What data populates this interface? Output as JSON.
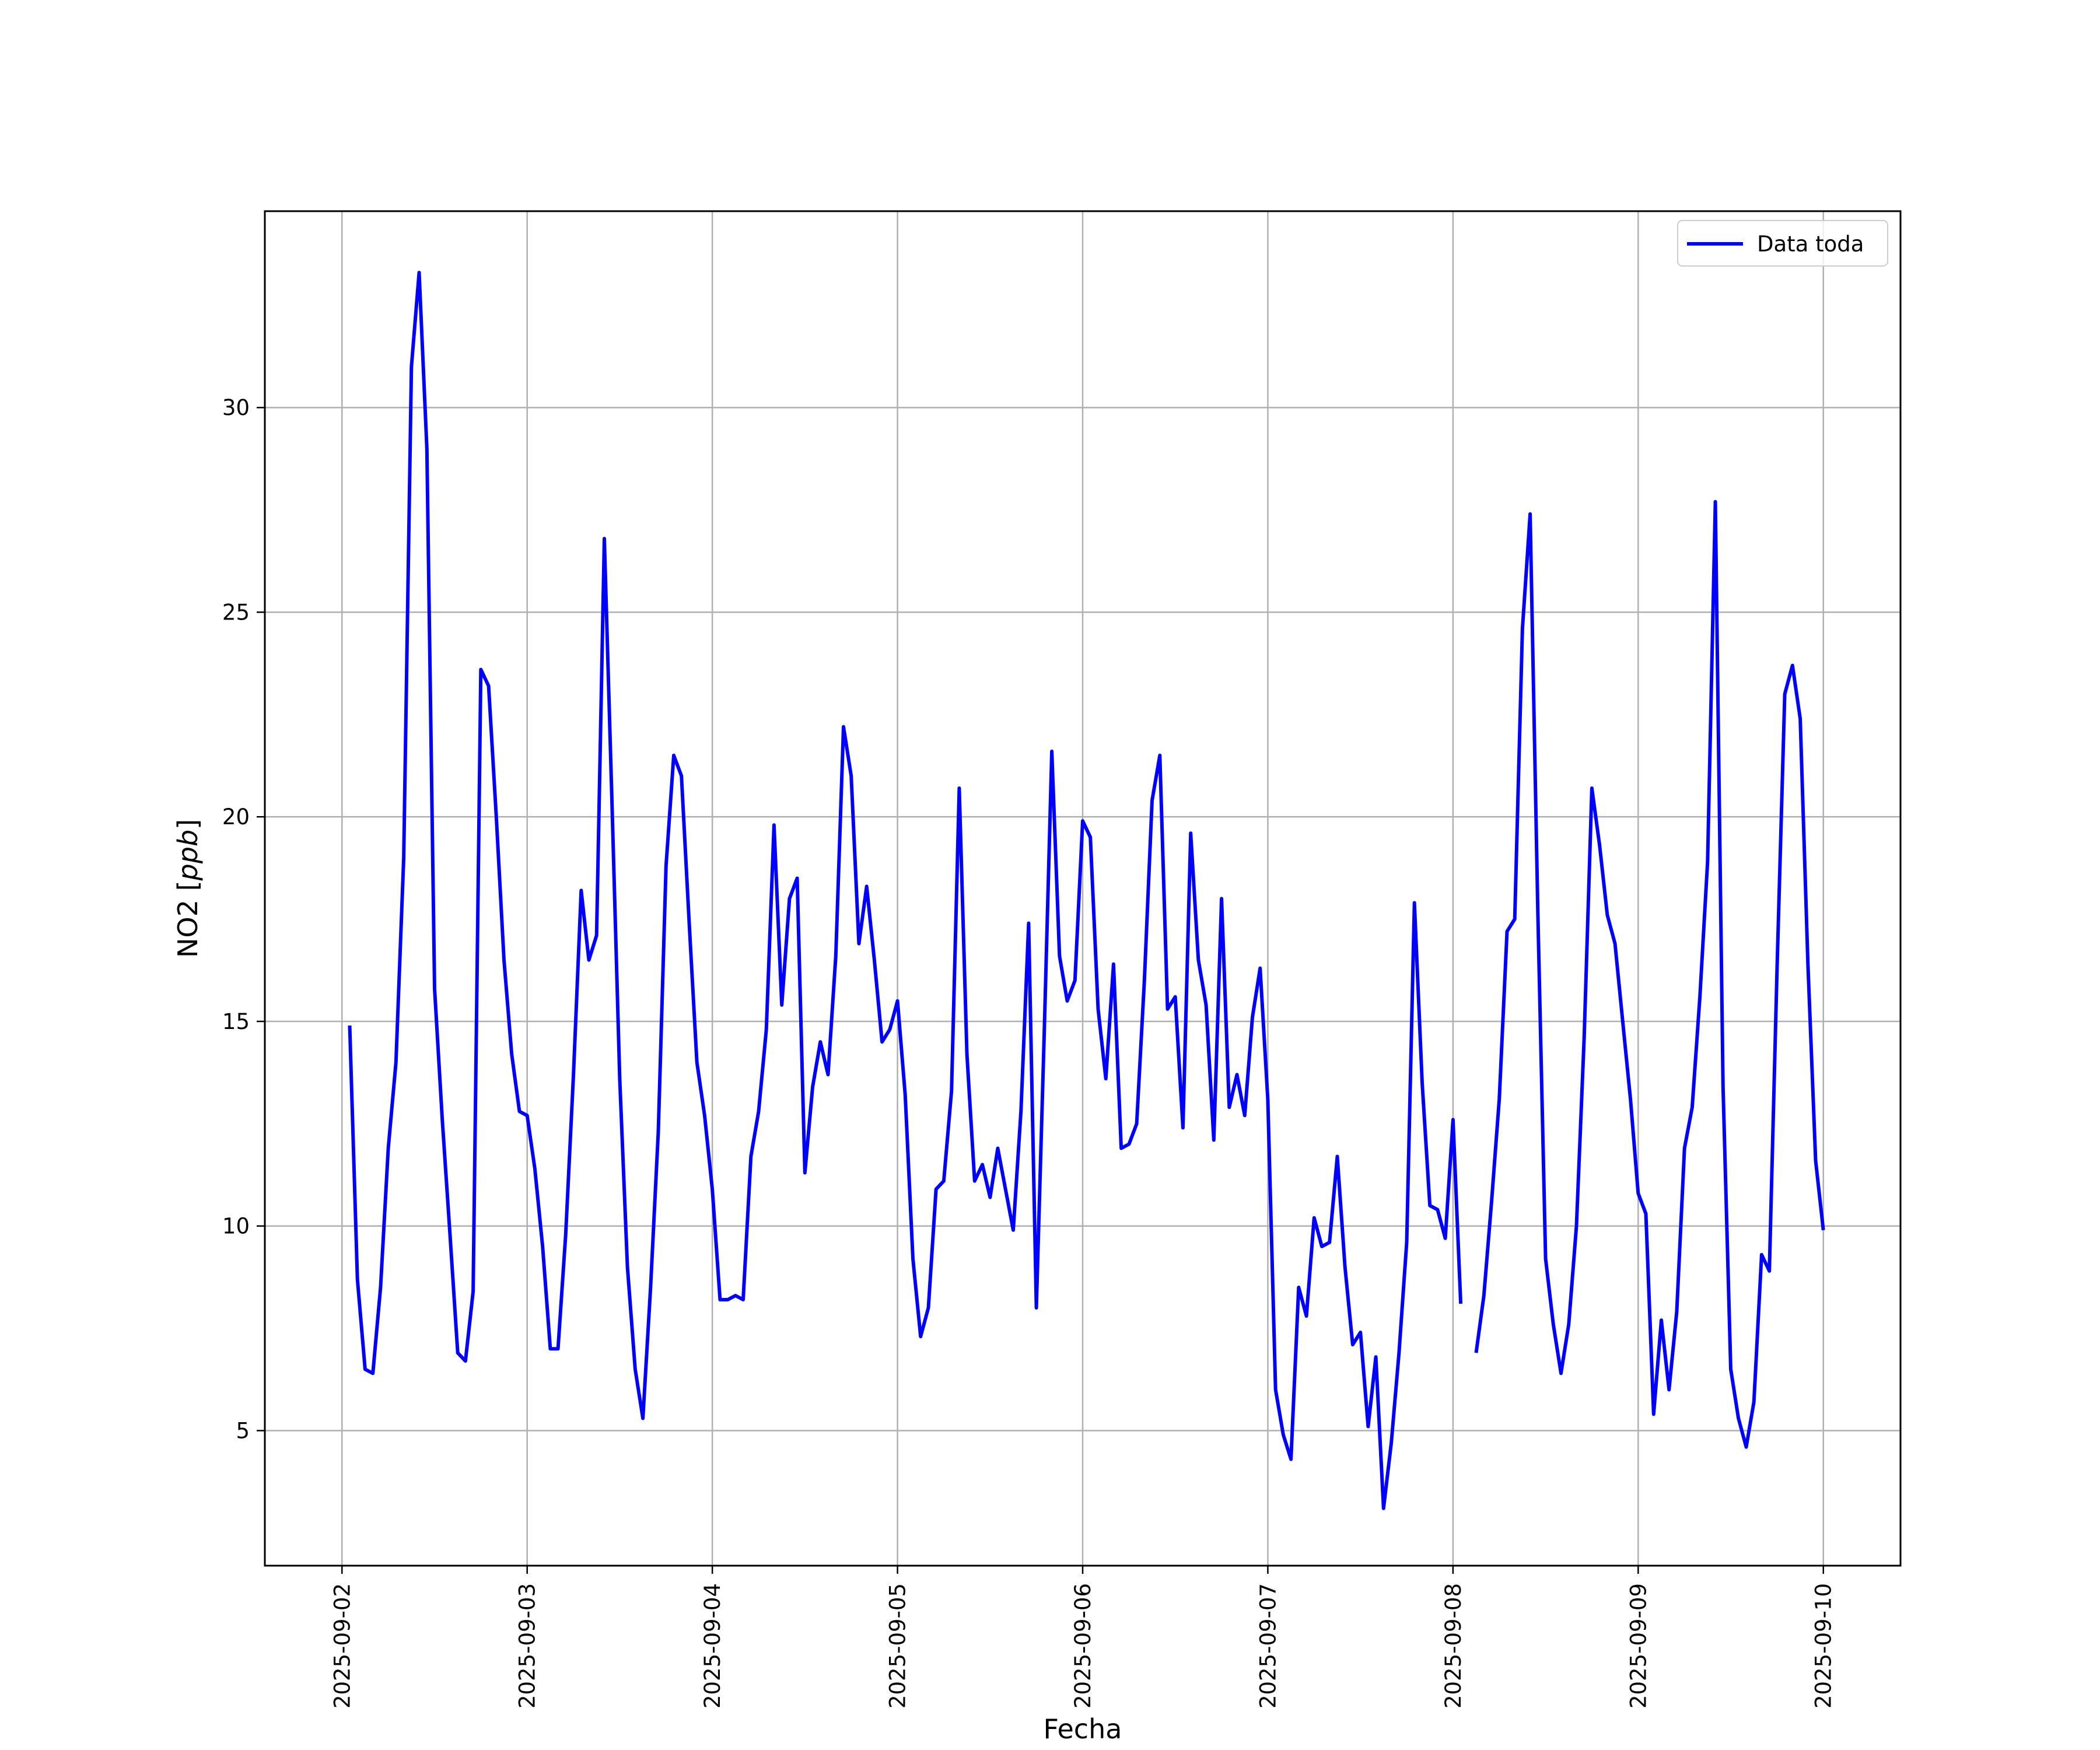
{
  "chart_data": {
    "type": "line",
    "title": "",
    "xlabel": "Fecha",
    "ylabel_prefix": "NO2 [",
    "ylabel_unit": "ppb",
    "ylabel_suffix": "]",
    "xlim": [
      "2025-09-01 14:00",
      "2025-09-10 10:00"
    ],
    "ylim": [
      1.7,
      34.8
    ],
    "grid": true,
    "legend_position": "top-right",
    "x_ticks": [
      "2025-09-02",
      "2025-09-03",
      "2025-09-04",
      "2025-09-05",
      "2025-09-06",
      "2025-09-07",
      "2025-09-08",
      "2025-09-09",
      "2025-09-10"
    ],
    "y_ticks": [
      5,
      10,
      15,
      20,
      25,
      30
    ],
    "series": [
      {
        "name": "Data toda",
        "color": "#0000ff",
        "segments": [
          [
            [
              "2025-09-02 01:00",
              14.9
            ],
            [
              "2025-09-02 02:00",
              8.7
            ],
            [
              "2025-09-02 03:00",
              6.5
            ],
            [
              "2025-09-02 04:00",
              6.4
            ],
            [
              "2025-09-02 05:00",
              8.5
            ],
            [
              "2025-09-02 06:00",
              11.9
            ],
            [
              "2025-09-02 07:00",
              14.0
            ],
            [
              "2025-09-02 08:00",
              19.0
            ],
            [
              "2025-09-02 09:00",
              31.0
            ],
            [
              "2025-09-02 10:00",
              33.3
            ],
            [
              "2025-09-02 11:00",
              29.0
            ],
            [
              "2025-09-02 12:00",
              15.8
            ],
            [
              "2025-09-02 13:00",
              12.6
            ],
            [
              "2025-09-02 14:00",
              9.8
            ],
            [
              "2025-09-02 15:00",
              6.9
            ],
            [
              "2025-09-02 16:00",
              6.7
            ],
            [
              "2025-09-02 17:00",
              8.4
            ],
            [
              "2025-09-02 18:00",
              23.6
            ],
            [
              "2025-09-02 19:00",
              23.2
            ],
            [
              "2025-09-02 20:00",
              20.0
            ],
            [
              "2025-09-02 21:00",
              16.5
            ],
            [
              "2025-09-02 22:00",
              14.2
            ],
            [
              "2025-09-02 23:00",
              12.8
            ],
            [
              "2025-09-03 00:00",
              12.7
            ],
            [
              "2025-09-03 01:00",
              11.4
            ],
            [
              "2025-09-03 02:00",
              9.5
            ],
            [
              "2025-09-03 03:00",
              7.0
            ],
            [
              "2025-09-03 04:00",
              7.0
            ],
            [
              "2025-09-03 05:00",
              9.8
            ],
            [
              "2025-09-03 06:00",
              13.7
            ],
            [
              "2025-09-03 07:00",
              18.2
            ],
            [
              "2025-09-03 08:00",
              16.5
            ],
            [
              "2025-09-03 09:00",
              17.1
            ],
            [
              "2025-09-03 10:00",
              26.8
            ],
            [
              "2025-09-03 11:00",
              20.3
            ],
            [
              "2025-09-03 12:00",
              13.6
            ],
            [
              "2025-09-03 13:00",
              9.0
            ],
            [
              "2025-09-03 14:00",
              6.5
            ],
            [
              "2025-09-03 15:00",
              5.3
            ],
            [
              "2025-09-03 16:00",
              8.5
            ],
            [
              "2025-09-03 17:00",
              12.3
            ],
            [
              "2025-09-03 18:00",
              18.8
            ],
            [
              "2025-09-03 19:00",
              21.5
            ],
            [
              "2025-09-03 20:00",
              21.0
            ],
            [
              "2025-09-03 21:00",
              17.4
            ],
            [
              "2025-09-03 22:00",
              14.0
            ],
            [
              "2025-09-03 23:00",
              12.7
            ],
            [
              "2025-09-04 00:00",
              10.9
            ],
            [
              "2025-09-04 01:00",
              8.2
            ],
            [
              "2025-09-04 02:00",
              8.2
            ],
            [
              "2025-09-04 03:00",
              8.3
            ],
            [
              "2025-09-04 04:00",
              8.2
            ],
            [
              "2025-09-04 05:00",
              11.7
            ],
            [
              "2025-09-04 06:00",
              12.8
            ],
            [
              "2025-09-04 07:00",
              14.8
            ],
            [
              "2025-09-04 08:00",
              19.8
            ],
            [
              "2025-09-04 09:00",
              15.4
            ],
            [
              "2025-09-04 10:00",
              18.0
            ],
            [
              "2025-09-04 11:00",
              18.5
            ],
            [
              "2025-09-04 12:00",
              11.3
            ],
            [
              "2025-09-04 13:00",
              13.4
            ],
            [
              "2025-09-04 14:00",
              14.5
            ],
            [
              "2025-09-04 15:00",
              13.7
            ],
            [
              "2025-09-04 16:00",
              16.6
            ],
            [
              "2025-09-04 17:00",
              22.2
            ],
            [
              "2025-09-04 18:00",
              21.0
            ],
            [
              "2025-09-04 19:00",
              16.9
            ],
            [
              "2025-09-04 20:00",
              18.3
            ],
            [
              "2025-09-04 21:00",
              16.5
            ],
            [
              "2025-09-04 22:00",
              14.5
            ],
            [
              "2025-09-04 23:00",
              14.8
            ],
            [
              "2025-09-05 00:00",
              15.5
            ],
            [
              "2025-09-05 01:00",
              13.2
            ],
            [
              "2025-09-05 02:00",
              9.2
            ],
            [
              "2025-09-05 03:00",
              7.3
            ],
            [
              "2025-09-05 04:00",
              8.0
            ],
            [
              "2025-09-05 05:00",
              10.9
            ],
            [
              "2025-09-05 06:00",
              11.1
            ],
            [
              "2025-09-05 07:00",
              13.3
            ],
            [
              "2025-09-05 08:00",
              20.7
            ],
            [
              "2025-09-05 09:00",
              14.2
            ],
            [
              "2025-09-05 10:00",
              11.1
            ],
            [
              "2025-09-05 11:00",
              11.5
            ],
            [
              "2025-09-05 12:00",
              10.7
            ],
            [
              "2025-09-05 13:00",
              11.9
            ],
            [
              "2025-09-05 14:00",
              10.9
            ],
            [
              "2025-09-05 15:00",
              9.9
            ],
            [
              "2025-09-05 16:00",
              12.8
            ],
            [
              "2025-09-05 17:00",
              17.4
            ],
            [
              "2025-09-05 18:00",
              8.0
            ],
            [
              "2025-09-05 19:00",
              14.6
            ],
            [
              "2025-09-05 20:00",
              21.6
            ],
            [
              "2025-09-05 21:00",
              16.6
            ],
            [
              "2025-09-05 22:00",
              15.5
            ],
            [
              "2025-09-05 23:00",
              16.0
            ],
            [
              "2025-09-06 00:00",
              19.9
            ],
            [
              "2025-09-06 01:00",
              19.5
            ],
            [
              "2025-09-06 02:00",
              15.3
            ],
            [
              "2025-09-06 03:00",
              13.6
            ],
            [
              "2025-09-06 04:00",
              16.4
            ],
            [
              "2025-09-06 05:00",
              11.9
            ],
            [
              "2025-09-06 06:00",
              12.0
            ],
            [
              "2025-09-06 07:00",
              12.5
            ],
            [
              "2025-09-06 08:00",
              16.0
            ],
            [
              "2025-09-06 09:00",
              20.4
            ],
            [
              "2025-09-06 10:00",
              21.5
            ],
            [
              "2025-09-06 11:00",
              15.3
            ],
            [
              "2025-09-06 12:00",
              15.6
            ],
            [
              "2025-09-06 13:00",
              12.4
            ],
            [
              "2025-09-06 14:00",
              19.6
            ],
            [
              "2025-09-06 15:00",
              16.5
            ],
            [
              "2025-09-06 16:00",
              15.4
            ],
            [
              "2025-09-06 17:00",
              12.1
            ],
            [
              "2025-09-06 18:00",
              18.0
            ],
            [
              "2025-09-06 19:00",
              12.9
            ],
            [
              "2025-09-06 20:00",
              13.7
            ],
            [
              "2025-09-06 21:00",
              12.7
            ],
            [
              "2025-09-06 22:00",
              15.1
            ],
            [
              "2025-09-06 23:00",
              16.3
            ],
            [
              "2025-09-07 00:00",
              13.1
            ],
            [
              "2025-09-07 01:00",
              6.0
            ],
            [
              "2025-09-07 02:00",
              4.9
            ],
            [
              "2025-09-07 03:00",
              4.3
            ],
            [
              "2025-09-07 04:00",
              8.5
            ],
            [
              "2025-09-07 05:00",
              7.8
            ],
            [
              "2025-09-07 06:00",
              10.2
            ],
            [
              "2025-09-07 07:00",
              9.5
            ],
            [
              "2025-09-07 08:00",
              9.6
            ],
            [
              "2025-09-07 09:00",
              11.7
            ],
            [
              "2025-09-07 10:00",
              9.0
            ],
            [
              "2025-09-07 11:00",
              7.1
            ],
            [
              "2025-09-07 12:00",
              7.4
            ],
            [
              "2025-09-07 13:00",
              5.1
            ],
            [
              "2025-09-07 14:00",
              6.8
            ],
            [
              "2025-09-07 15:00",
              3.1
            ],
            [
              "2025-09-07 16:00",
              4.7
            ],
            [
              "2025-09-07 17:00",
              6.9
            ],
            [
              "2025-09-07 18:00",
              9.6
            ],
            [
              "2025-09-07 19:00",
              17.9
            ],
            [
              "2025-09-07 20:00",
              13.5
            ],
            [
              "2025-09-07 21:00",
              10.5
            ],
            [
              "2025-09-07 22:00",
              10.4
            ],
            [
              "2025-09-07 23:00",
              9.7
            ],
            [
              "2025-09-08 00:00",
              12.6
            ],
            [
              "2025-09-08 01:00",
              8.1
            ]
          ],
          [
            [
              "2025-09-08 03:00",
              6.9
            ],
            [
              "2025-09-08 04:00",
              8.3
            ],
            [
              "2025-09-08 05:00",
              10.6
            ],
            [
              "2025-09-08 06:00",
              13.1
            ],
            [
              "2025-09-08 07:00",
              17.2
            ],
            [
              "2025-09-08 08:00",
              17.5
            ],
            [
              "2025-09-08 09:00",
              24.6
            ],
            [
              "2025-09-08 10:00",
              27.4
            ],
            [
              "2025-09-08 11:00",
              17.6
            ],
            [
              "2025-09-08 12:00",
              9.2
            ],
            [
              "2025-09-08 13:00",
              7.6
            ],
            [
              "2025-09-08 14:00",
              6.4
            ],
            [
              "2025-09-08 15:00",
              7.6
            ],
            [
              "2025-09-08 16:00",
              10.0
            ],
            [
              "2025-09-08 17:00",
              14.6
            ],
            [
              "2025-09-08 18:00",
              20.7
            ],
            [
              "2025-09-08 19:00",
              19.3
            ],
            [
              "2025-09-08 20:00",
              17.6
            ],
            [
              "2025-09-08 21:00",
              16.9
            ],
            [
              "2025-09-08 22:00",
              15.0
            ],
            [
              "2025-09-08 23:00",
              13.1
            ],
            [
              "2025-09-09 00:00",
              10.8
            ],
            [
              "2025-09-09 01:00",
              10.3
            ],
            [
              "2025-09-09 02:00",
              5.4
            ],
            [
              "2025-09-09 03:00",
              7.7
            ],
            [
              "2025-09-09 04:00",
              6.0
            ],
            [
              "2025-09-09 05:00",
              7.9
            ],
            [
              "2025-09-09 06:00",
              11.9
            ],
            [
              "2025-09-09 07:00",
              12.9
            ],
            [
              "2025-09-09 08:00",
              15.6
            ],
            [
              "2025-09-09 09:00",
              18.9
            ],
            [
              "2025-09-09 10:00",
              27.7
            ],
            [
              "2025-09-09 11:00",
              13.4
            ],
            [
              "2025-09-09 12:00",
              6.5
            ],
            [
              "2025-09-09 13:00",
              5.3
            ],
            [
              "2025-09-09 14:00",
              4.6
            ],
            [
              "2025-09-09 15:00",
              5.7
            ],
            [
              "2025-09-09 16:00",
              9.3
            ],
            [
              "2025-09-09 17:00",
              8.9
            ],
            [
              "2025-09-09 18:00",
              16.3
            ],
            [
              "2025-09-09 19:00",
              23.0
            ],
            [
              "2025-09-09 20:00",
              23.7
            ],
            [
              "2025-09-09 21:00",
              22.4
            ],
            [
              "2025-09-09 22:00",
              16.4
            ],
            [
              "2025-09-09 23:00",
              11.6
            ],
            [
              "2025-09-10 00:00",
              9.9
            ]
          ]
        ]
      }
    ]
  }
}
